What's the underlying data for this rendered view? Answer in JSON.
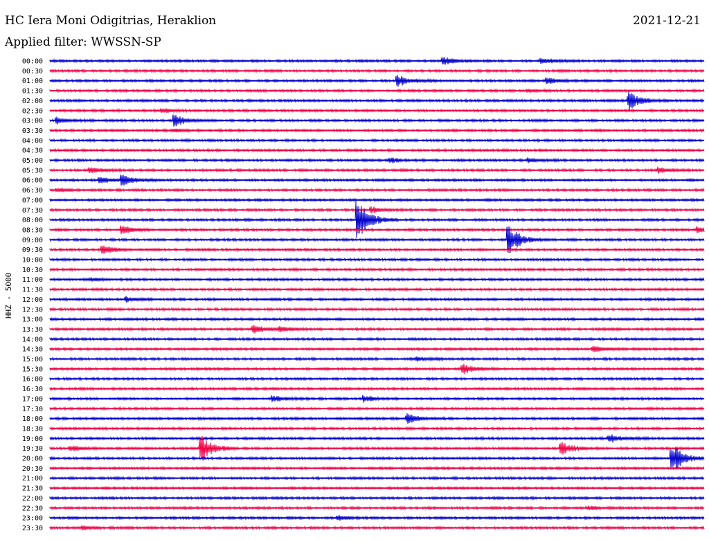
{
  "header": {
    "station_title": "HC Iera Moni Odigitrias, Heraklion",
    "date": "2021-12-21",
    "filter_label": "Applied filter: WWSSN-SP"
  },
  "chart_data": {
    "type": "line",
    "title": "HC Iera Moni Odigitrias, Heraklion",
    "ylabel": "HHZ - 5000",
    "row_labels": [
      "00:00",
      "00:30",
      "01:00",
      "01:30",
      "02:00",
      "02:30",
      "03:00",
      "03:30",
      "04:00",
      "04:30",
      "05:00",
      "05:30",
      "06:00",
      "06:30",
      "07:00",
      "07:30",
      "08:00",
      "08:30",
      "09:00",
      "09:30",
      "10:00",
      "10:30",
      "11:00",
      "11:30",
      "12:00",
      "12:30",
      "13:00",
      "13:30",
      "14:00",
      "14:30",
      "15:00",
      "15:30",
      "16:00",
      "16:30",
      "17:00",
      "17:30",
      "18:00",
      "18:30",
      "19:00",
      "19:30",
      "20:00",
      "20:30",
      "21:00",
      "21:30",
      "22:00",
      "22:30",
      "23:00",
      "23:30"
    ],
    "row_colors": [
      "#0000cc",
      "#ee0044"
    ],
    "x_range_minutes": [
      0,
      30
    ],
    "noise_amplitude": 1.2,
    "events": [
      {
        "row": 0,
        "t": 0.6,
        "amp": 6
      },
      {
        "row": 0,
        "t": 0.75,
        "amp": 5
      },
      {
        "row": 2,
        "t": 0.53,
        "amp": 9
      },
      {
        "row": 2,
        "t": 0.76,
        "amp": 4
      },
      {
        "row": 3,
        "t": 0.73,
        "amp": 2
      },
      {
        "row": 4,
        "t": 0.885,
        "amp": 13
      },
      {
        "row": 5,
        "t": 0.17,
        "amp": 3
      },
      {
        "row": 6,
        "t": 0.01,
        "amp": 5
      },
      {
        "row": 6,
        "t": 0.19,
        "amp": 9
      },
      {
        "row": 7,
        "t": 0.19,
        "amp": 2
      },
      {
        "row": 10,
        "t": 0.52,
        "amp": 3
      },
      {
        "row": 10,
        "t": 0.73,
        "amp": 3
      },
      {
        "row": 11,
        "t": 0.06,
        "amp": 4
      },
      {
        "row": 11,
        "t": 0.93,
        "amp": 4
      },
      {
        "row": 12,
        "t": 0.075,
        "amp": 4
      },
      {
        "row": 12,
        "t": 0.11,
        "amp": 7
      },
      {
        "row": 13,
        "t": 0.01,
        "amp": 3
      },
      {
        "row": 15,
        "t": 0.49,
        "amp": 5
      },
      {
        "row": 16,
        "t": 0.47,
        "amp": 30
      },
      {
        "row": 17,
        "t": 0.11,
        "amp": 6
      },
      {
        "row": 17,
        "t": 0.99,
        "amp": 6
      },
      {
        "row": 18,
        "t": 0.7,
        "amp": 24
      },
      {
        "row": 19,
        "t": 0.08,
        "amp": 6
      },
      {
        "row": 22,
        "t": 0.06,
        "amp": 2
      },
      {
        "row": 24,
        "t": 0.115,
        "amp": 4
      },
      {
        "row": 27,
        "t": 0.31,
        "amp": 7
      },
      {
        "row": 27,
        "t": 0.35,
        "amp": 4
      },
      {
        "row": 29,
        "t": 0.83,
        "amp": 5
      },
      {
        "row": 30,
        "t": 0.56,
        "amp": 3
      },
      {
        "row": 31,
        "t": 0.63,
        "amp": 8
      },
      {
        "row": 34,
        "t": 0.34,
        "amp": 4
      },
      {
        "row": 34,
        "t": 0.48,
        "amp": 4
      },
      {
        "row": 36,
        "t": 0.545,
        "amp": 7
      },
      {
        "row": 38,
        "t": 0.855,
        "amp": 6
      },
      {
        "row": 39,
        "t": 0.03,
        "amp": 4
      },
      {
        "row": 39,
        "t": 0.23,
        "amp": 20
      },
      {
        "row": 39,
        "t": 0.78,
        "amp": 10
      },
      {
        "row": 40,
        "t": 0.95,
        "amp": 24
      },
      {
        "row": 45,
        "t": 0.82,
        "amp": 3
      },
      {
        "row": 46,
        "t": 0.44,
        "amp": 3
      },
      {
        "row": 47,
        "t": 0.05,
        "amp": 3
      }
    ]
  }
}
